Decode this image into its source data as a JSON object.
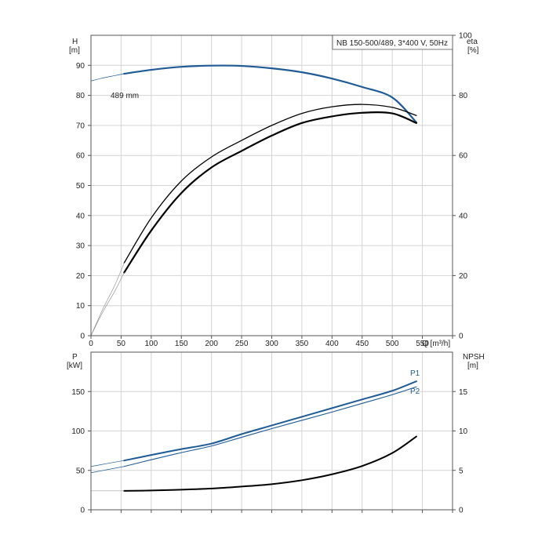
{
  "chart_data": [
    {
      "type": "line",
      "title": "NB 150-500/489, 3*400 V, 50Hz",
      "left_axis": {
        "label": "H",
        "unit": "[m]",
        "ylim": [
          0,
          100
        ],
        "ticks": [
          0,
          10,
          20,
          30,
          40,
          50,
          60,
          70,
          80,
          90
        ]
      },
      "right_axis": {
        "label": "eta",
        "unit": "[%]",
        "ylim": [
          0,
          100
        ],
        "ticks": [
          0,
          20,
          40,
          60,
          80,
          100
        ]
      },
      "x_axis": {
        "label": "Q [m³/h]",
        "xlim": [
          0,
          600
        ],
        "ticks": [
          0,
          50,
          100,
          150,
          200,
          250,
          300,
          350,
          400,
          450,
          500,
          550
        ]
      },
      "grid": true,
      "annotations": [
        {
          "text": "489 mm"
        }
      ],
      "series": [
        {
          "axis": "left",
          "color": "#1f5b96",
          "width": 2.2,
          "x": [
            55,
            100,
            150,
            200,
            250,
            300,
            350,
            400,
            450,
            500,
            540
          ],
          "y": [
            87.2,
            88.5,
            89.5,
            89.9,
            89.8,
            89.0,
            87.7,
            85.6,
            82.8,
            79.3,
            71.0
          ]
        },
        {
          "axis": "left",
          "color": "#1f5b96",
          "width": 0.7,
          "x": [
            0,
            20,
            40,
            55
          ],
          "y": [
            84.8,
            85.8,
            86.6,
            87.2
          ]
        },
        {
          "axis": "right",
          "color": "#000000",
          "width": 1.3,
          "x": [
            55,
            100,
            150,
            200,
            250,
            300,
            350,
            400,
            450,
            500,
            540
          ],
          "y": [
            24.2,
            39.2,
            51.5,
            59.5,
            65.0,
            70.0,
            74.0,
            76.2,
            77.0,
            76.0,
            73.3
          ]
        },
        {
          "axis": "right",
          "color": "#000000",
          "width": 2.2,
          "x": [
            55,
            100,
            150,
            200,
            250,
            300,
            350,
            400,
            450,
            500,
            540
          ],
          "y": [
            21.0,
            35.0,
            47.5,
            56.0,
            61.5,
            66.6,
            70.8,
            73.0,
            74.2,
            74.0,
            70.8
          ]
        },
        {
          "axis": "right",
          "color": "#888888",
          "width": 0.6,
          "x": [
            0,
            20,
            40,
            55
          ],
          "y": [
            0,
            9,
            17,
            24.2
          ]
        },
        {
          "axis": "right",
          "color": "#888888",
          "width": 0.6,
          "x": [
            0,
            20,
            40,
            55
          ],
          "y": [
            0,
            8,
            15,
            21.0
          ]
        }
      ]
    },
    {
      "type": "line",
      "left_axis": {
        "label": "P",
        "unit": "[kW]",
        "ylim": [
          0,
          200
        ],
        "ticks": [
          0,
          50,
          100,
          150
        ]
      },
      "right_axis": {
        "label": "NPSH",
        "unit": "[m]",
        "ylim": [
          0,
          20
        ],
        "ticks": [
          0,
          5,
          10,
          15
        ]
      },
      "x_axis": {
        "xlim": [
          0,
          600
        ]
      },
      "grid": true,
      "series": [
        {
          "name": "P1",
          "axis": "left",
          "color": "#1f5b96",
          "width": 2.0,
          "x": [
            55,
            100,
            150,
            200,
            250,
            300,
            350,
            400,
            450,
            500,
            540
          ],
          "y": [
            62.5,
            69.5,
            77,
            84,
            96,
            107,
            118,
            129,
            140,
            151,
            163
          ]
        },
        {
          "name": "P2",
          "axis": "left",
          "color": "#1f5b96",
          "width": 1.1,
          "x": [
            55,
            100,
            150,
            200,
            250,
            300,
            350,
            400,
            450,
            500,
            540
          ],
          "y": [
            55,
            63.5,
            72.5,
            81,
            92,
            103,
            113.5,
            124,
            135,
            146,
            156
          ]
        },
        {
          "axis": "left",
          "color": "#1f5b96",
          "width": 0.7,
          "x": [
            0,
            55
          ],
          "y": [
            55,
            62.5
          ]
        },
        {
          "axis": "left",
          "color": "#1f5b96",
          "width": 0.7,
          "x": [
            0,
            55
          ],
          "y": [
            47,
            55
          ]
        },
        {
          "axis": "right",
          "color": "#000000",
          "width": 2.0,
          "x": [
            55,
            100,
            150,
            200,
            250,
            300,
            350,
            400,
            450,
            500,
            540
          ],
          "y": [
            2.4,
            2.45,
            2.55,
            2.7,
            2.95,
            3.25,
            3.75,
            4.5,
            5.55,
            7.2,
            9.3
          ]
        },
        {
          "axis": "right",
          "color": "#888888",
          "width": 0.6,
          "x": [
            0,
            55
          ],
          "y": [
            2.4,
            2.4
          ]
        }
      ]
    }
  ]
}
